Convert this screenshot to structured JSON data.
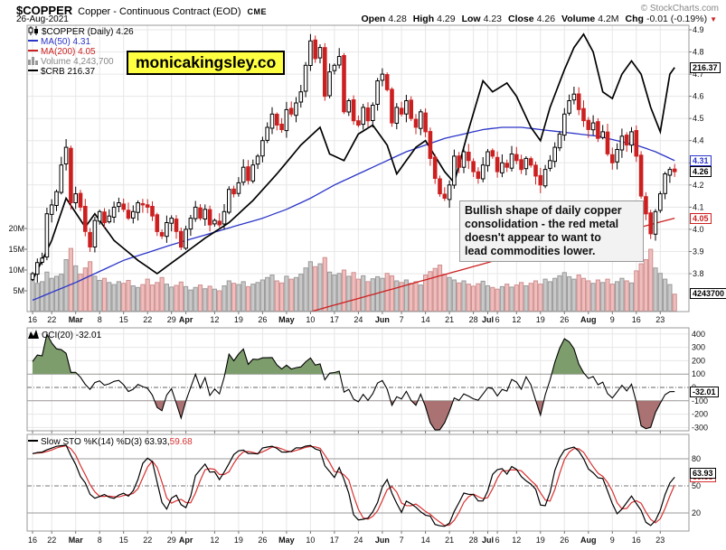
{
  "header": {
    "symbol": "$COPPER",
    "description": "Copper - Continuous Contract (EOD)",
    "exchange": "CME",
    "copyright": "© StockCharts.com",
    "date": "26-Aug-2021",
    "quote": [
      {
        "label": "Open",
        "value": "4.28"
      },
      {
        "label": "High",
        "value": "4.29"
      },
      {
        "label": "Low",
        "value": "4.23"
      },
      {
        "label": "Close",
        "value": "4.26"
      },
      {
        "label": "Volume",
        "value": "4.2M"
      },
      {
        "label": "Chg",
        "value": "-0.01 (-0.19%)"
      }
    ],
    "change_direction": "▼"
  },
  "watermark": "monicakingsley.co",
  "annotation": {
    "lines": [
      "Bullish shape of daily copper",
      "consolidation - the red metal",
      "doesn't appear to want to",
      "lead commodities lower."
    ]
  },
  "legend_main": [
    {
      "icon": "candlestick-icon",
      "color": "#000000",
      "text": "$COPPER (Daily) 4.26"
    },
    {
      "icon": "line-icon",
      "color": "#2b35c8",
      "text": "MA(50) 4.31"
    },
    {
      "icon": "line-icon",
      "color": "#cc2020",
      "text": "MA(200) 4.05"
    },
    {
      "icon": "volume-bars-icon",
      "color": "#888888",
      "text": "Volume 4,243,700"
    },
    {
      "icon": "line-icon",
      "color": "#000000",
      "text": "$CRB 216.37"
    }
  ],
  "legend_cci": [
    {
      "icon": "zigzag-icon",
      "color": "#000000",
      "text": "CCI(20) -32.01"
    }
  ],
  "legend_sto": [
    {
      "icon": "line-icon",
      "color": "#000000",
      "text": "Slow STO %K(14) %D(3) 63.93,"
    },
    {
      "icon": "none",
      "color": "#d83030",
      "text": " 59.68"
    }
  ],
  "colors": {
    "up": "#000000",
    "down": "#cc2020",
    "ma50": "#2b35c8",
    "ma200": "#cc2020",
    "crb": "#000000",
    "vol_up": "#c9c9c9",
    "vol_up_edge": "#9a9a9a",
    "vol_down": "#f0bdbd",
    "vol_down_edge": "#cf9090",
    "cci_pos": "#7e9d6d",
    "cci_neg": "#aa7272",
    "sto_k": "#000000",
    "sto_d": "#d83030",
    "grid": "#e7e7e7",
    "band": "#999999",
    "zero": "#666666",
    "frame": "#999999"
  },
  "edge_labels": [
    {
      "text": "216.37",
      "pane": "price",
      "value": 4.73,
      "color": "#000000"
    },
    {
      "text": "4.31",
      "pane": "price",
      "value": 4.31,
      "color": "#2b35c8"
    },
    {
      "text": "4.26",
      "pane": "price",
      "value": 4.26,
      "color": "#000000"
    },
    {
      "text": "4.05",
      "pane": "price",
      "value": 4.05,
      "color": "#cc2020"
    },
    {
      "text": "4243700",
      "pane": "volume",
      "value": 4.2437,
      "color": "#000000"
    },
    {
      "text": "-32.01",
      "pane": "cci",
      "value": -32.01,
      "color": "#000000"
    },
    {
      "text": "59.68",
      "pane": "sto",
      "value": 59.68,
      "color": "#d83030"
    },
    {
      "text": "63.93",
      "pane": "sto",
      "value": 63.93,
      "color": "#000000"
    }
  ],
  "chart_data": [
    {
      "id": "price",
      "type": "candlestick",
      "title": "$COPPER (Daily)",
      "last_close": 4.26,
      "ylim": [
        3.63,
        4.92
      ],
      "yticks": [
        "4.9",
        "4.8",
        "4.7",
        "4.6",
        "4.5",
        "4.4",
        "4.3",
        "4.2",
        "4.1",
        "4.0",
        "3.9",
        "3.8"
      ],
      "volume_yticks": [
        "20M",
        "15M",
        "10M",
        "5M"
      ],
      "x_ticks": [
        {
          "label": "16",
          "day": 0
        },
        {
          "label": "22",
          "day": 4
        },
        {
          "label": "Mar",
          "day": 9
        },
        {
          "label": "8",
          "day": 14
        },
        {
          "label": "15",
          "day": 19
        },
        {
          "label": "22",
          "day": 24
        },
        {
          "label": "29",
          "day": 29
        },
        {
          "label": "Apr",
          "day": 32
        },
        {
          "label": "12",
          "day": 38
        },
        {
          "label": "19",
          "day": 43
        },
        {
          "label": "26",
          "day": 48
        },
        {
          "label": "May",
          "day": 53
        },
        {
          "label": "10",
          "day": 58
        },
        {
          "label": "17",
          "day": 63
        },
        {
          "label": "24",
          "day": 68
        },
        {
          "label": "Jun",
          "day": 73
        },
        {
          "label": "7",
          "day": 77
        },
        {
          "label": "14",
          "day": 82
        },
        {
          "label": "21",
          "day": 87
        },
        {
          "label": "28",
          "day": 92
        },
        {
          "label": "Jul",
          "day": 95
        },
        {
          "label": "6",
          "day": 97
        },
        {
          "label": "12",
          "day": 101
        },
        {
          "label": "19",
          "day": 106
        },
        {
          "label": "26",
          "day": 111
        },
        {
          "label": "Aug",
          "day": 116
        },
        {
          "label": "9",
          "day": 121
        },
        {
          "label": "16",
          "day": 126
        },
        {
          "label": "23",
          "day": 131
        }
      ],
      "closes": [
        3.8,
        3.85,
        3.87,
        4.07,
        4.11,
        4.17,
        4.29,
        4.37,
        4.12,
        4.16,
        4.1,
        3.99,
        3.92,
        4.04,
        4.08,
        4.03,
        4.06,
        4.1,
        4.12,
        4.09,
        4.05,
        4.08,
        4.12,
        4.11,
        4.1,
        4.06,
        3.99,
        3.97,
        4.03,
        4.05,
        3.99,
        3.92,
        4.0,
        4.05,
        4.1,
        4.05,
        4.09,
        4.02,
        4.04,
        4.02,
        4.08,
        4.18,
        4.16,
        4.21,
        4.28,
        4.22,
        4.29,
        4.33,
        4.4,
        4.46,
        4.52,
        4.47,
        4.45,
        4.54,
        4.52,
        4.57,
        4.62,
        4.74,
        4.85,
        4.77,
        4.82,
        4.6,
        4.71,
        4.74,
        4.78,
        4.53,
        4.58,
        4.49,
        4.47,
        4.55,
        4.49,
        4.56,
        4.67,
        4.7,
        4.63,
        4.48,
        4.55,
        4.52,
        4.58,
        4.5,
        4.46,
        4.53,
        4.44,
        4.32,
        4.23,
        4.16,
        4.14,
        4.2,
        4.33,
        4.28,
        4.35,
        4.31,
        4.26,
        4.23,
        4.29,
        4.35,
        4.33,
        4.26,
        4.3,
        4.28,
        4.34,
        4.31,
        4.27,
        4.32,
        4.29,
        4.24,
        4.2,
        4.27,
        4.31,
        4.37,
        4.43,
        4.52,
        4.58,
        4.61,
        4.54,
        4.49,
        4.45,
        4.48,
        4.41,
        4.44,
        4.34,
        4.3,
        4.36,
        4.42,
        4.38,
        4.44,
        4.33,
        4.15,
        4.07,
        3.98,
        4.08,
        4.16,
        4.25,
        4.27,
        4.26
      ],
      "volumes_millions": [
        7.5,
        6.8,
        7.2,
        9.5,
        8.0,
        8.5,
        9.0,
        12.5,
        15.2,
        11.0,
        9.0,
        10.5,
        12.0,
        8.5,
        7.5,
        8.0,
        7.0,
        6.5,
        7.2,
        6.8,
        7.5,
        6.2,
        5.8,
        6.5,
        7.8,
        6.4,
        7.0,
        8.2,
        6.6,
        5.9,
        6.3,
        7.1,
        6.0,
        5.2,
        5.8,
        6.4,
        5.5,
        6.1,
        5.4,
        5.0,
        6.2,
        7.4,
        6.8,
        6.5,
        7.2,
        6.0,
        6.6,
        7.0,
        7.6,
        8.2,
        8.8,
        7.4,
        6.9,
        8.5,
        7.8,
        8.2,
        9.0,
        10.5,
        12.0,
        10.8,
        11.5,
        13.0,
        9.5,
        8.8,
        9.2,
        10.0,
        8.5,
        9.4,
        7.8,
        8.6,
        7.2,
        7.9,
        8.4,
        8.0,
        9.2,
        8.6,
        7.4,
        7.0,
        7.6,
        6.8,
        7.2,
        6.4,
        8.8,
        9.6,
        10.4,
        11.2,
        9.0,
        8.2,
        7.6,
        6.9,
        7.4,
        6.6,
        6.1,
        6.7,
        7.3,
        6.2,
        5.8,
        5.4,
        6.0,
        6.6,
        5.9,
        6.4,
        7.0,
        6.2,
        6.8,
        7.4,
        6.6,
        7.8,
        7.2,
        8.0,
        8.6,
        9.4,
        8.4,
        7.8,
        8.8,
        8.0,
        7.4,
        6.8,
        7.6,
        7.0,
        7.8,
        6.6,
        7.2,
        8.0,
        7.4,
        6.9,
        9.8,
        11.5,
        12.5,
        15.0,
        10.5,
        9.2,
        7.8,
        6.5,
        4.2
      ],
      "last_volume": "4,243,700",
      "overlays": [
        {
          "name": "MA(50)",
          "last": 4.31,
          "keypoints": [
            [
              0,
              3.68
            ],
            [
              9,
              3.76
            ],
            [
              19,
              3.86
            ],
            [
              29,
              3.93
            ],
            [
              40,
              4.0
            ],
            [
              48,
              4.05
            ],
            [
              53,
              4.09
            ],
            [
              58,
              4.14
            ],
            [
              63,
              4.2
            ],
            [
              68,
              4.25
            ],
            [
              73,
              4.3
            ],
            [
              78,
              4.35
            ],
            [
              82,
              4.38
            ],
            [
              86,
              4.41
            ],
            [
              90,
              4.43
            ],
            [
              94,
              4.45
            ],
            [
              98,
              4.46
            ],
            [
              102,
              4.46
            ],
            [
              106,
              4.45
            ],
            [
              110,
              4.44
            ],
            [
              114,
              4.43
            ],
            [
              118,
              4.42
            ],
            [
              122,
              4.4
            ],
            [
              126,
              4.38
            ],
            [
              130,
              4.35
            ],
            [
              134,
              4.31
            ]
          ]
        },
        {
          "name": "MA(200)",
          "last": 4.05,
          "keypoints": [
            [
              0,
              3.3
            ],
            [
              20,
              3.42
            ],
            [
              40,
              3.52
            ],
            [
              60,
              3.64
            ],
            [
              80,
              3.76
            ],
            [
              90,
              3.82
            ],
            [
              100,
              3.88
            ],
            [
              110,
              3.93
            ],
            [
              120,
              3.98
            ],
            [
              127,
              4.01
            ],
            [
              134,
              4.05
            ]
          ]
        },
        {
          "name": "$CRB",
          "last": 216.37,
          "keypoints": [
            [
              0,
              3.77
            ],
            [
              4,
              3.95
            ],
            [
              7,
              4.14
            ],
            [
              11,
              4.01
            ],
            [
              13,
              4.07
            ],
            [
              17,
              3.95
            ],
            [
              22,
              3.86
            ],
            [
              26,
              3.8
            ],
            [
              31,
              3.88
            ],
            [
              36,
              3.96
            ],
            [
              41,
              4.03
            ],
            [
              46,
              4.13
            ],
            [
              51,
              4.25
            ],
            [
              56,
              4.38
            ],
            [
              60,
              4.46
            ],
            [
              62,
              4.34
            ],
            [
              65,
              4.31
            ],
            [
              68,
              4.43
            ],
            [
              71,
              4.47
            ],
            [
              74,
              4.38
            ],
            [
              76,
              4.25
            ],
            [
              80,
              4.37
            ],
            [
              82,
              4.4
            ],
            [
              86,
              4.26
            ],
            [
              88,
              4.21
            ],
            [
              91,
              4.45
            ],
            [
              94,
              4.67
            ],
            [
              96,
              4.62
            ],
            [
              99,
              4.66
            ],
            [
              101,
              4.6
            ],
            [
              104,
              4.46
            ],
            [
              106,
              4.4
            ],
            [
              108,
              4.55
            ],
            [
              111,
              4.72
            ],
            [
              113,
              4.82
            ],
            [
              115,
              4.88
            ],
            [
              117,
              4.8
            ],
            [
              119,
              4.62
            ],
            [
              121,
              4.59
            ],
            [
              123,
              4.7
            ],
            [
              125,
              4.76
            ],
            [
              127,
              4.7
            ],
            [
              129,
              4.55
            ],
            [
              131,
              4.44
            ],
            [
              133,
              4.7
            ],
            [
              134,
              4.73
            ]
          ]
        }
      ]
    },
    {
      "id": "cci",
      "type": "line",
      "name": "CCI(20)",
      "last": -32.01,
      "yticks": [
        "400",
        "300",
        "200",
        "100",
        "0",
        "-100",
        "-200",
        "-300"
      ],
      "upper_band": 100,
      "lower_band": -100,
      "derived_from": "closes"
    },
    {
      "id": "sto",
      "type": "line",
      "name": "Slow STO %K(14) %D(3)",
      "last_k": 63.93,
      "last_d": 59.68,
      "yticks": [
        "80",
        "50",
        "20"
      ],
      "upper_band": 80,
      "mid_band": 50,
      "lower_band": 20,
      "derived_from": "closes"
    }
  ]
}
